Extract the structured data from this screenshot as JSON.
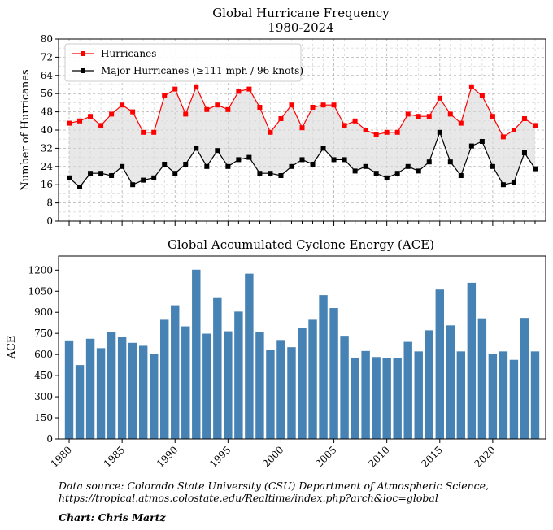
{
  "chart_data": [
    {
      "type": "line",
      "title": "Global Hurricane Frequency",
      "subtitle": "1980-2024",
      "xlabel": "",
      "ylabel": "Number of Hurricanes",
      "ylim": [
        0,
        80
      ],
      "yticks": [
        0,
        8,
        16,
        24,
        32,
        40,
        48,
        56,
        64,
        72,
        80
      ],
      "xlim": [
        1979,
        2025
      ],
      "grid": true,
      "legend_position": "top-left",
      "shade_between_series": true,
      "x": [
        1980,
        1981,
        1982,
        1983,
        1984,
        1985,
        1986,
        1987,
        1988,
        1989,
        1990,
        1991,
        1992,
        1993,
        1994,
        1995,
        1996,
        1997,
        1998,
        1999,
        2000,
        2001,
        2002,
        2003,
        2004,
        2005,
        2006,
        2007,
        2008,
        2009,
        2010,
        2011,
        2012,
        2013,
        2014,
        2015,
        2016,
        2017,
        2018,
        2019,
        2020,
        2021,
        2022,
        2023,
        2024
      ],
      "series": [
        {
          "name": "Hurricanes",
          "color": "#ff0000",
          "values": [
            43,
            44,
            46,
            42,
            47,
            51,
            48,
            39,
            39,
            55,
            58,
            47,
            59,
            49,
            51,
            49,
            57,
            58,
            50,
            39,
            45,
            51,
            41,
            50,
            51,
            51,
            42,
            44,
            40,
            38,
            39,
            39,
            47,
            46,
            46,
            54,
            47,
            43,
            59,
            55,
            46,
            37,
            40,
            45,
            42
          ]
        },
        {
          "name": "Major Hurricanes (≥111 mph / 96 knots)",
          "color": "#000000",
          "values": [
            19,
            15,
            21,
            21,
            20,
            24,
            16,
            18,
            19,
            25,
            21,
            25,
            32,
            24,
            31,
            24,
            27,
            28,
            21,
            21,
            20,
            24,
            27,
            25,
            32,
            27,
            27,
            22,
            24,
            21,
            19,
            21,
            24,
            22,
            26,
            39,
            26,
            20,
            33,
            35,
            24,
            16,
            17,
            30,
            23
          ]
        }
      ]
    },
    {
      "type": "bar",
      "title": "Global Accumulated Cyclone Energy (ACE)",
      "xlabel": "",
      "ylabel": "ACE",
      "ylim": [
        0,
        1300
      ],
      "yticks": [
        0,
        150,
        300,
        450,
        600,
        750,
        900,
        1050,
        1200
      ],
      "xticks": [
        1980,
        1985,
        1990,
        1995,
        2000,
        2005,
        2010,
        2015,
        2020
      ],
      "color": "#4682b4",
      "grid": false,
      "x": [
        1980,
        1981,
        1982,
        1983,
        1984,
        1985,
        1986,
        1987,
        1988,
        1989,
        1990,
        1991,
        1992,
        1993,
        1994,
        1995,
        1996,
        1997,
        1998,
        1999,
        2000,
        2001,
        2002,
        2003,
        2004,
        2005,
        2006,
        2007,
        2008,
        2009,
        2010,
        2011,
        2012,
        2013,
        2014,
        2015,
        2016,
        2017,
        2018,
        2019,
        2020,
        2021,
        2022,
        2023,
        2024
      ],
      "values": [
        700,
        525,
        712,
        645,
        760,
        728,
        683,
        662,
        602,
        847,
        950,
        800,
        1203,
        748,
        1007,
        765,
        905,
        1175,
        757,
        635,
        703,
        652,
        787,
        847,
        1022,
        930,
        733,
        578,
        625,
        582,
        572,
        572,
        690,
        622,
        772,
        1062,
        807,
        622,
        1110,
        857,
        602,
        622,
        562,
        860,
        622
      ]
    }
  ],
  "footer": {
    "source_line1": "Data source: Colorado State University (CSU) Department of Atmospheric Science,",
    "source_line2": "https://tropical.atmos.colostate.edu/Realtime/index.php?arch&loc=global",
    "credit": "Chart: Chris Martz"
  }
}
